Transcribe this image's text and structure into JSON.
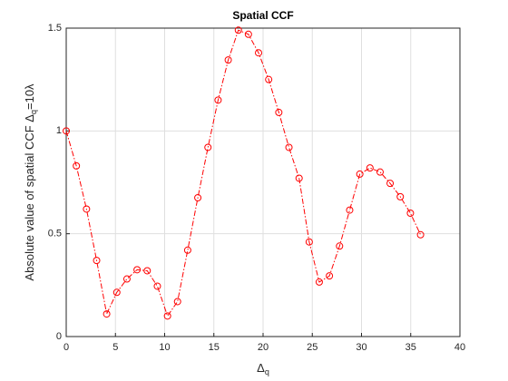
{
  "chart_data": {
    "type": "line",
    "title": "Spatial CCF",
    "xlabel": [
      "Δ",
      "q"
    ],
    "ylabel": [
      "Absolute value of spatial CCF  Δ",
      "q",
      "=10λ"
    ],
    "x": [
      0,
      1.03,
      2.06,
      3.09,
      4.11,
      5.14,
      6.17,
      7.2,
      8.23,
      9.26,
      10.29,
      11.31,
      12.34,
      13.37,
      14.4,
      15.43,
      16.46,
      17.49,
      18.51,
      19.54,
      20.57,
      21.6,
      22.63,
      23.66,
      24.69,
      25.71,
      26.74,
      27.77,
      28.8,
      29.83,
      30.86,
      31.89,
      32.91,
      33.94,
      34.97,
      36
    ],
    "series": [
      {
        "color": "#ff0000",
        "values": [
          1.0,
          0.83,
          0.62,
          0.37,
          0.11,
          0.215,
          0.28,
          0.325,
          0.32,
          0.245,
          0.1,
          0.17,
          0.42,
          0.675,
          0.92,
          1.15,
          1.345,
          1.49,
          1.47,
          1.38,
          1.25,
          1.09,
          0.92,
          0.77,
          0.46,
          0.265,
          0.295,
          0.44,
          0.615,
          0.79,
          0.82,
          0.8,
          0.745,
          0.68,
          0.6,
          0.495
        ]
      }
    ],
    "xlim": [
      0,
      40
    ],
    "xticks": [
      0,
      5,
      10,
      15,
      20,
      25,
      30,
      35,
      40
    ],
    "ylim": [
      0,
      1.5
    ],
    "yticks": [
      0,
      0.5,
      1,
      1.5
    ],
    "grid": true
  }
}
